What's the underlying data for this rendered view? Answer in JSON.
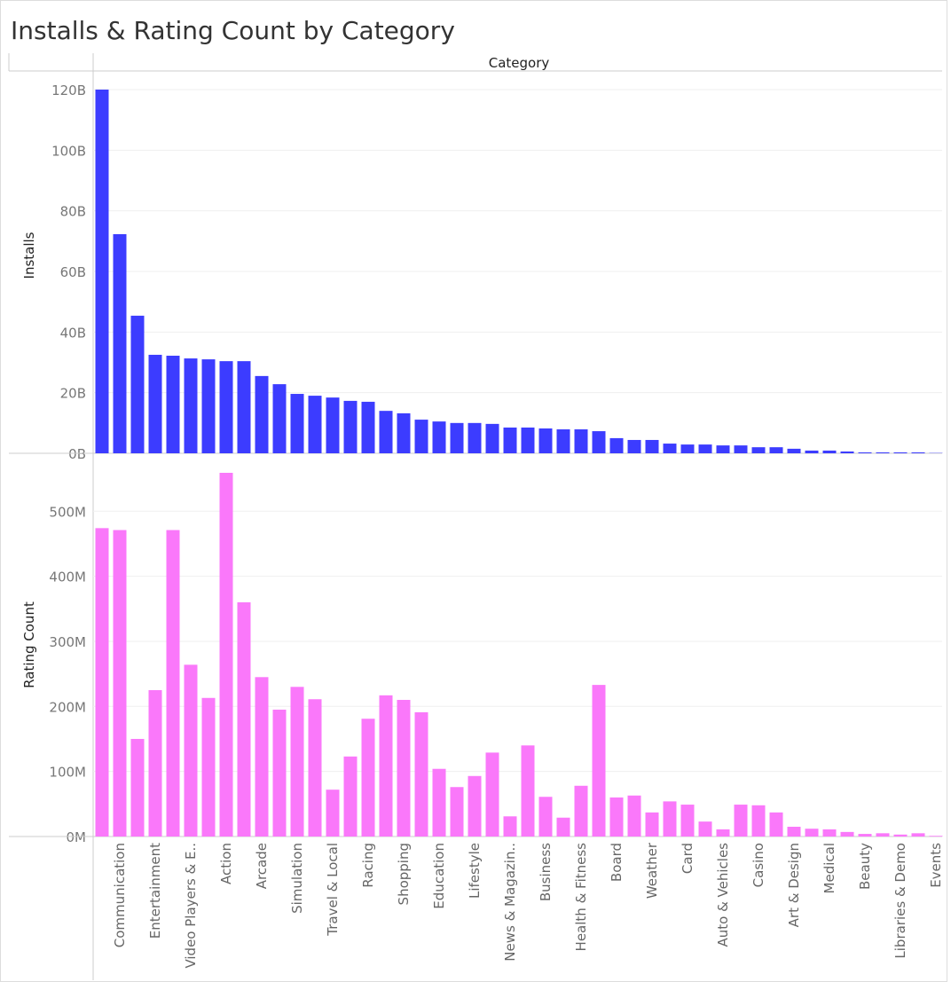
{
  "chart_data": [
    {
      "type": "bar",
      "title": "Installs & Rating Count by Category",
      "xlabel": "Category",
      "ylabel": "Installs",
      "color": "#3c3cff",
      "values": [
        120,
        72.3,
        45.4,
        32.5,
        32.2,
        31.3,
        31.0,
        30.4,
        30.4,
        25.5,
        22.8,
        19.6,
        19.0,
        18.4,
        17.3,
        17.0,
        14.0,
        13.2,
        11.1,
        10.5,
        10.0,
        10.0,
        9.7,
        8.5,
        8.5,
        8.2,
        7.9,
        7.9,
        7.3,
        5.0,
        4.4,
        4.4,
        3.2,
        2.9,
        2.9,
        2.6,
        2.6,
        2.0,
        2.0,
        1.5,
        0.9,
        0.9,
        0.6,
        0.3,
        0.3,
        0.3,
        0.3,
        0.1
      ],
      "ylim": [
        0,
        120
      ],
      "yticks": [
        {
          "value": 0,
          "label": "0B"
        },
        {
          "value": 20,
          "label": "20B"
        },
        {
          "value": 40,
          "label": "40B"
        },
        {
          "value": 60,
          "label": "60B"
        },
        {
          "value": 80,
          "label": "80B"
        },
        {
          "value": 100,
          "label": "100B"
        },
        {
          "value": 120,
          "label": "120B"
        }
      ],
      "grid": true
    },
    {
      "type": "bar",
      "ylabel": "Rating Count",
      "color": "#fa78fa",
      "categories": [
        null,
        "Communication",
        null,
        "Entertainment",
        null,
        "Video Players & E..",
        null,
        "Action",
        null,
        "Arcade",
        null,
        "Simulation",
        null,
        "Travel & Local",
        null,
        "Racing",
        null,
        "Shopping",
        null,
        "Education",
        null,
        "Lifestyle",
        null,
        "News & Magazin..",
        null,
        "Business",
        null,
        "Health & Fitness",
        null,
        "Board",
        null,
        "Weather",
        null,
        "Card",
        null,
        "Auto & Vehicles",
        null,
        "Casino",
        null,
        "Art & Design",
        null,
        "Medical",
        null,
        "Beauty",
        null,
        "Libraries & Demo",
        null,
        "Events"
      ],
      "values": [
        474,
        471,
        150,
        225,
        471,
        264,
        213,
        559,
        360,
        245,
        195,
        230,
        211,
        72,
        123,
        181,
        217,
        210,
        191,
        104,
        76,
        93,
        129,
        31,
        140,
        61,
        29,
        78,
        233,
        60,
        63,
        37,
        54,
        49,
        23,
        11,
        49,
        48,
        37,
        15,
        12,
        11,
        7,
        4,
        5,
        3,
        5,
        1
      ],
      "ylim": [
        0,
        559
      ],
      "yticks": [
        {
          "value": 0,
          "label": "0M"
        },
        {
          "value": 100,
          "label": "100M"
        },
        {
          "value": 200,
          "label": "200M"
        },
        {
          "value": 300,
          "label": "300M"
        },
        {
          "value": 400,
          "label": "400M"
        },
        {
          "value": 500,
          "label": "500M"
        }
      ],
      "grid": true
    }
  ]
}
